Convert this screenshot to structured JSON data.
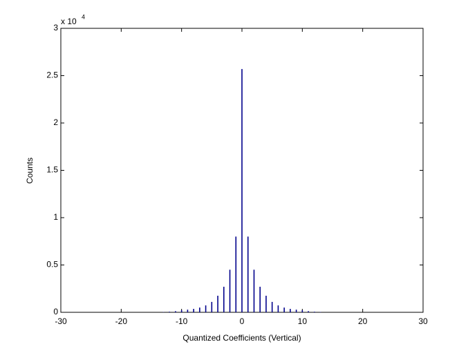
{
  "chart_data": {
    "type": "bar",
    "x_label": "Quantized Coefficients (Vertical)",
    "y_label": "Counts",
    "y_multiplier_label": "x 10",
    "y_multiplier_exponent": "4",
    "x": [
      -13,
      -12,
      -11,
      -10,
      -9,
      -8,
      -7,
      -6,
      -5,
      -4,
      -3,
      -2,
      -1,
      0,
      1,
      2,
      3,
      4,
      5,
      6,
      7,
      8,
      9,
      10,
      11,
      12,
      13
    ],
    "values": [
      0.003,
      0.006,
      0.012,
      0.022,
      0.028,
      0.036,
      0.05,
      0.073,
      0.11,
      0.175,
      0.27,
      0.45,
      0.8,
      2.57,
      0.8,
      0.45,
      0.27,
      0.175,
      0.11,
      0.073,
      0.05,
      0.036,
      0.028,
      0.022,
      0.012,
      0.006,
      0.003
    ],
    "color": "#00008b",
    "xlim": [
      -30,
      30
    ],
    "xticks": [
      -30,
      -20,
      -10,
      0,
      10,
      20,
      30
    ],
    "ylim": [
      0,
      3
    ],
    "yticks": [
      0,
      0.5,
      1,
      1.5,
      2,
      2.5,
      3
    ]
  }
}
